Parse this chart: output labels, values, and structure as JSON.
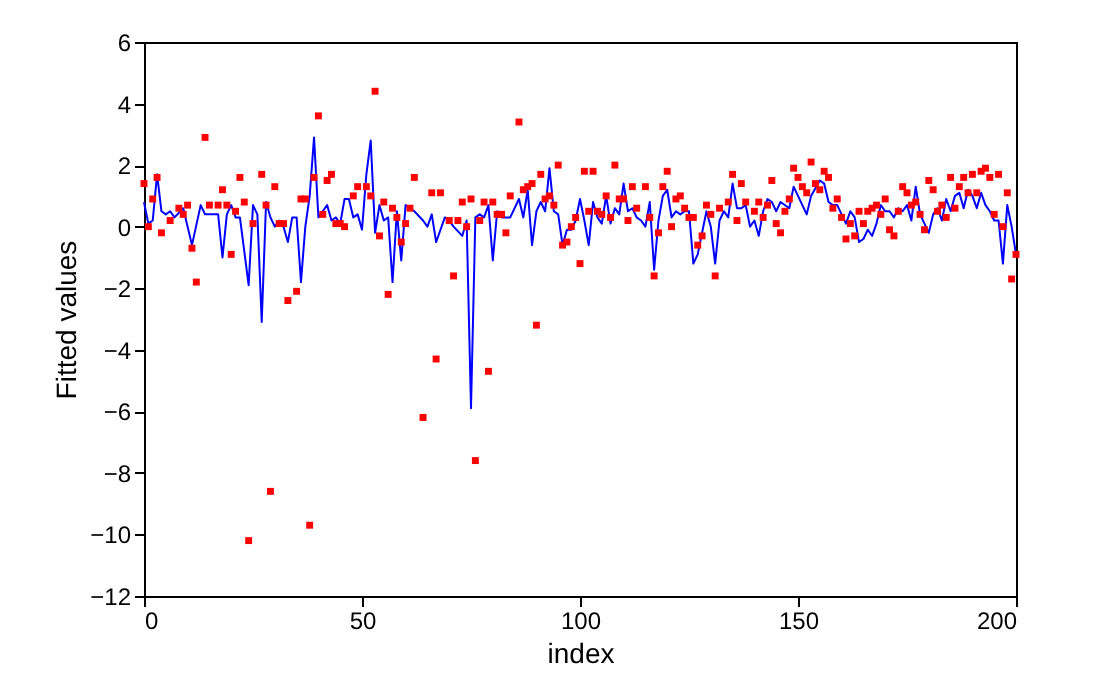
{
  "chart_data": {
    "type": "line",
    "xlabel": "index",
    "ylabel": "Fitted values",
    "xlim": [
      0,
      200
    ],
    "xticks": [
      0,
      50,
      100,
      150,
      200
    ],
    "ylim": [
      -12,
      6
    ],
    "yticks": [
      -12,
      -10,
      -8,
      -6,
      -4,
      -2,
      0,
      2,
      4,
      6
    ],
    "grid": false,
    "series": [
      {
        "color": "#0000ff",
        "marker": "none",
        "line_style": "solid",
        "x": [
          0,
          1,
          2,
          3,
          4,
          5,
          6,
          7,
          9,
          11,
          13,
          14,
          15,
          17,
          18,
          19,
          20,
          21,
          22,
          24,
          25,
          26,
          27,
          28,
          29,
          30,
          31,
          32,
          33,
          34,
          35,
          36,
          37,
          38,
          39,
          40,
          41,
          42,
          43,
          44,
          45,
          46,
          47,
          48,
          49,
          50,
          51,
          52,
          53,
          54,
          55,
          56,
          57,
          58,
          59,
          60,
          62,
          64,
          65,
          66,
          67,
          68,
          69,
          70,
          71,
          73,
          74,
          75,
          76,
          77,
          78,
          79,
          80,
          81,
          82,
          83,
          84,
          86,
          87,
          88,
          89,
          90,
          91,
          92,
          93,
          94,
          95,
          96,
          97,
          98,
          99,
          100,
          101,
          102,
          103,
          104,
          105,
          106,
          107,
          108,
          109,
          110,
          111,
          112,
          113,
          114,
          115,
          116,
          117,
          118,
          119,
          120,
          121,
          122,
          123,
          124,
          125,
          126,
          127,
          129,
          130,
          131,
          132,
          133,
          134,
          135,
          136,
          137,
          138,
          139,
          140,
          141,
          142,
          143,
          144,
          145,
          146,
          148,
          149,
          150,
          151,
          152,
          153,
          155,
          156,
          157,
          158,
          159,
          160,
          161,
          162,
          163,
          164,
          165,
          166,
          167,
          168,
          169,
          170,
          171,
          172,
          173,
          174,
          175,
          176,
          177,
          178,
          179,
          180,
          181,
          182,
          183,
          184,
          185,
          186,
          187,
          188,
          189,
          190,
          191,
          192,
          193,
          194,
          195,
          196,
          197,
          198,
          199,
          200
        ],
        "values": [
          0.8,
          0.1,
          0.2,
          1.7,
          0.5,
          0.4,
          0.5,
          0.3,
          0.6,
          -0.6,
          0.7,
          0.4,
          0.4,
          0.4,
          -1.0,
          0.4,
          0.7,
          0.3,
          0.3,
          -1.9,
          0.7,
          0.4,
          -3.1,
          0.8,
          0.3,
          0.0,
          0.2,
          0.0,
          -0.5,
          0.3,
          0.3,
          -1.8,
          0.0,
          1.0,
          2.9,
          0.3,
          0.5,
          0.7,
          0.2,
          0.3,
          0.1,
          0.9,
          0.9,
          0.3,
          0.4,
          -0.1,
          1.7,
          2.8,
          -0.2,
          0.7,
          0.2,
          0.3,
          -1.8,
          0.5,
          -1.1,
          0.7,
          0.5,
          0.2,
          0.0,
          0.4,
          -0.5,
          -0.1,
          0.3,
          0.2,
          0.0,
          -0.3,
          0.2,
          -5.9,
          0.3,
          0.4,
          0.3,
          0.7,
          -1.1,
          0.5,
          0.3,
          0.3,
          0.3,
          0.9,
          0.3,
          1.2,
          -0.6,
          0.5,
          0.8,
          0.5,
          1.9,
          0.5,
          0.4,
          -0.6,
          -0.1,
          -0.1,
          0.2,
          0.9,
          0.2,
          -0.6,
          0.8,
          0.3,
          0.1,
          1.0,
          0.1,
          0.6,
          0.4,
          1.4,
          0.5,
          0.6,
          0.3,
          0.2,
          0.0,
          0.8,
          -1.4,
          0.2,
          1.0,
          1.2,
          0.3,
          0.5,
          0.4,
          0.5,
          0.5,
          -1.2,
          -0.9,
          0.5,
          0.0,
          -1.2,
          0.2,
          0.5,
          0.3,
          1.4,
          0.6,
          0.6,
          0.7,
          0.0,
          0.2,
          -0.3,
          0.5,
          0.9,
          0.8,
          0.5,
          0.8,
          0.6,
          1.3,
          1.0,
          0.7,
          0.4,
          1.0,
          1.5,
          1.4,
          0.8,
          0.7,
          0.7,
          0.4,
          0.1,
          0.5,
          0.3,
          -0.5,
          -0.4,
          -0.1,
          -0.3,
          0.1,
          0.7,
          0.5,
          0.5,
          0.3,
          0.6,
          0.5,
          0.7,
          0.2,
          1.3,
          0.4,
          0.1,
          -0.2,
          0.4,
          0.6,
          0.2,
          0.9,
          0.5,
          1.0,
          1.1,
          0.6,
          1.2,
          1.0,
          0.6,
          1.1,
          0.7,
          0.5,
          0.2,
          0.2,
          -1.2,
          0.7,
          0.0,
          -0.9
        ]
      },
      {
        "type": "scatter",
        "color": "#ff0000",
        "marker": "square",
        "x": [
          0,
          1,
          2,
          3,
          4,
          6,
          8,
          9,
          10,
          11,
          12,
          14,
          15,
          17,
          18,
          19,
          20,
          21,
          22,
          23,
          24,
          25,
          27,
          28,
          29,
          30,
          31,
          32,
          33,
          35,
          36,
          37,
          38,
          39,
          40,
          41,
          42,
          43,
          44,
          45,
          46,
          48,
          49,
          51,
          52,
          53,
          54,
          55,
          56,
          57,
          58,
          59,
          60,
          61,
          62,
          64,
          66,
          67,
          68,
          70,
          71,
          72,
          73,
          74,
          75,
          76,
          77,
          78,
          79,
          80,
          81,
          82,
          83,
          84,
          86,
          87,
          88,
          89,
          90,
          91,
          92,
          93,
          94,
          95,
          96,
          97,
          98,
          99,
          100,
          101,
          102,
          103,
          104,
          105,
          106,
          107,
          108,
          109,
          110,
          111,
          112,
          113,
          115,
          116,
          117,
          118,
          119,
          120,
          121,
          122,
          123,
          124,
          125,
          126,
          127,
          128,
          129,
          130,
          131,
          132,
          134,
          135,
          136,
          137,
          138,
          140,
          141,
          142,
          143,
          144,
          145,
          146,
          147,
          148,
          149,
          150,
          151,
          152,
          153,
          154,
          155,
          156,
          157,
          158,
          159,
          160,
          161,
          162,
          163,
          164,
          165,
          166,
          167,
          168,
          169,
          170,
          171,
          172,
          173,
          174,
          175,
          176,
          177,
          178,
          179,
          180,
          181,
          182,
          183,
          184,
          185,
          186,
          187,
          188,
          189,
          190,
          191,
          192,
          193,
          194,
          195,
          196,
          197,
          198,
          199,
          200
        ],
        "values": [
          1.4,
          0.0,
          0.9,
          1.6,
          -0.2,
          0.2,
          0.6,
          0.4,
          0.7,
          -0.7,
          -1.8,
          2.9,
          0.7,
          0.7,
          1.2,
          0.7,
          -0.9,
          0.5,
          1.6,
          0.8,
          -10.2,
          0.1,
          1.7,
          0.7,
          -8.6,
          1.3,
          0.1,
          0.1,
          -2.4,
          -2.1,
          0.9,
          0.9,
          -9.7,
          1.6,
          3.6,
          0.4,
          1.5,
          1.7,
          0.1,
          0.1,
          0.0,
          1.0,
          1.3,
          1.3,
          1.0,
          4.4,
          -0.3,
          0.8,
          -2.2,
          0.6,
          0.3,
          -0.5,
          0.1,
          0.6,
          1.6,
          -6.2,
          1.1,
          -4.3,
          1.1,
          0.2,
          -1.6,
          0.2,
          0.8,
          0.0,
          0.9,
          -7.6,
          0.2,
          0.8,
          -4.7,
          0.8,
          0.4,
          0.4,
          -0.2,
          1.0,
          3.4,
          1.2,
          1.3,
          1.4,
          -3.2,
          1.7,
          0.9,
          1.0,
          0.7,
          2.0,
          -0.6,
          -0.5,
          0.0,
          0.3,
          -1.2,
          1.8,
          0.5,
          1.8,
          0.5,
          0.4,
          1.0,
          0.3,
          2.0,
          0.9,
          0.9,
          0.2,
          1.3,
          0.6,
          1.3,
          0.3,
          -1.6,
          -0.2,
          1.3,
          1.8,
          0.0,
          0.9,
          1.0,
          0.6,
          0.3,
          0.3,
          -0.6,
          -0.3,
          0.7,
          0.4,
          -1.6,
          0.6,
          0.8,
          1.7,
          0.2,
          1.4,
          0.8,
          0.5,
          0.8,
          0.3,
          0.7,
          1.5,
          0.1,
          -0.2,
          0.5,
          0.9,
          1.9,
          1.6,
          1.3,
          1.1,
          2.1,
          1.4,
          1.2,
          1.8,
          1.6,
          0.6,
          0.9,
          0.3,
          -0.4,
          0.1,
          -0.3,
          0.5,
          0.1,
          0.5,
          0.6,
          0.7,
          0.4,
          0.9,
          -0.1,
          -0.3,
          0.5,
          1.3,
          1.1,
          0.7,
          0.8,
          0.4,
          -0.1,
          1.5,
          1.2,
          0.5,
          0.7,
          0.3,
          1.6,
          0.6,
          1.3,
          1.6,
          1.1,
          1.7,
          1.1,
          1.8,
          1.9,
          1.6,
          0.4,
          1.7,
          0.0,
          1.1,
          -1.7,
          -0.9
        ]
      }
    ]
  }
}
